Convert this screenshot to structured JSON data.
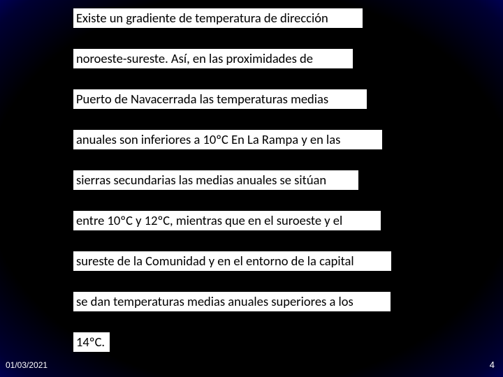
{
  "slide": {
    "lines": [
      "Existe un gradiente de temperatura de dirección",
      "noroeste-sureste. Así, en las proximidades de",
      "Puerto de Navacerrada las temperaturas medias",
      "anuales son inferiores a 10ºC En La Rampa y en las",
      "sierras secundarias las medias anuales se sitúan",
      "entre 10ºC y 12ºC, mientras que en el suroeste y el",
      "sureste de la Comunidad y en el entorno de la capital",
      "se dan temperaturas medias anuales superiores a los",
      "14ºC."
    ],
    "line_tops": [
      12,
      70,
      128,
      186,
      244,
      302,
      360,
      418,
      476
    ],
    "line_widths": [
      414,
      400,
      420,
      442,
      408,
      440,
      455,
      454,
      52
    ],
    "text_color": "#000000",
    "text_background": "#ffffff",
    "text_fontsize": 18.5,
    "font_family": "Calibri, Arial, sans-serif"
  },
  "footer": {
    "date": "01/03/2021",
    "page_number": "4",
    "text_color": "#ffffff",
    "fontsize": 12
  },
  "background": {
    "gradient_stops": [
      "#000000",
      "#000033",
      "#000088",
      "#0011cc",
      "#3355ff",
      "#88aaff"
    ]
  }
}
